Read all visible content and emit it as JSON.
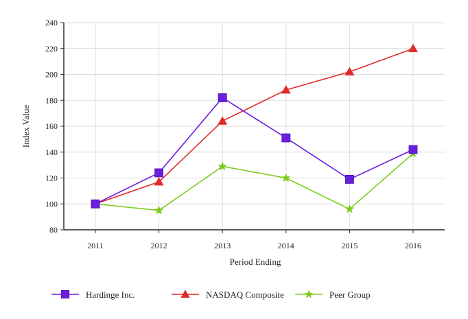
{
  "chart_data": {
    "type": "line",
    "title": "",
    "xlabel": "Period Ending",
    "ylabel": "Index Value",
    "categories": [
      "2011",
      "2012",
      "2013",
      "2014",
      "2015",
      "2016"
    ],
    "ylim": [
      80,
      240
    ],
    "yticks": [
      80,
      100,
      120,
      140,
      160,
      180,
      200,
      220,
      240
    ],
    "grid": true,
    "legend_position": "bottom",
    "series": [
      {
        "name": "Hardinge Inc.",
        "marker": "square",
        "color": "#6a1fe0",
        "values": [
          100,
          124,
          182,
          151,
          119,
          142
        ]
      },
      {
        "name": "NASDAQ Composite",
        "marker": "triangle",
        "color": "#e02a2a",
        "values": [
          100,
          117,
          164,
          188,
          202,
          220
        ]
      },
      {
        "name": "Peer Group",
        "marker": "star",
        "color": "#7ecb20",
        "values": [
          100,
          95,
          129,
          120,
          96,
          139
        ]
      }
    ]
  }
}
